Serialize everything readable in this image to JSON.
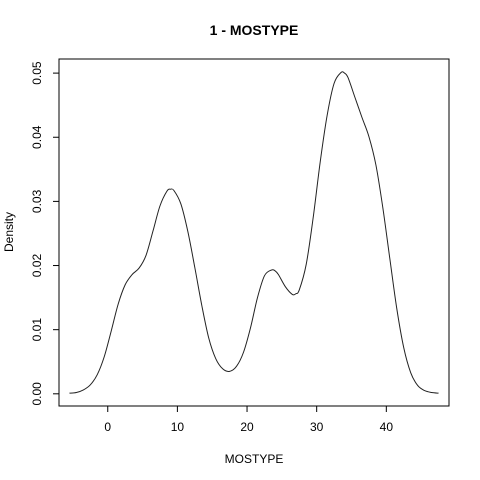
{
  "chart_data": {
    "type": "line",
    "title": "1 - MOSTYPE",
    "xlabel": "MOSTYPE",
    "ylabel": "Density",
    "x_ticks": [
      0,
      10,
      20,
      30,
      40
    ],
    "y_ticks": [
      0.0,
      0.01,
      0.02,
      0.03,
      0.04,
      0.05
    ],
    "y_tick_labels": [
      "0.00",
      "0.01",
      "0.02",
      "0.03",
      "0.04",
      "0.05"
    ],
    "xlim": [
      -7,
      49
    ],
    "ylim": [
      -0.0019,
      0.0522
    ],
    "grid": false,
    "series": [
      {
        "x": [
          -5.5,
          -4.5,
          -3.5,
          -2.5,
          -1.5,
          -0.5,
          0.5,
          1.5,
          2.5,
          3.5,
          4.5,
          5.5,
          6.5,
          7.5,
          8.5,
          9.0,
          9.5,
          10.5,
          11.5,
          12.5,
          13.5,
          14.5,
          15.5,
          16.5,
          17.5,
          18.5,
          19.5,
          20.5,
          21.5,
          22.5,
          23.5,
          24.0,
          24.5,
          25.5,
          26.5,
          27.0,
          27.5,
          28.5,
          29.5,
          30.5,
          31.5,
          32.5,
          33.5,
          34.0,
          34.5,
          35.5,
          36.5,
          37.5,
          38.5,
          39.5,
          40.5,
          41.5,
          42.5,
          43.5,
          44.5,
          45.5,
          46.5,
          47.5
        ],
        "y": [
          0.0001,
          0.0002,
          0.0006,
          0.0014,
          0.003,
          0.0058,
          0.0098,
          0.014,
          0.017,
          0.0186,
          0.0196,
          0.0216,
          0.0254,
          0.0293,
          0.0316,
          0.0319,
          0.0317,
          0.0296,
          0.0253,
          0.0197,
          0.0138,
          0.0087,
          0.0055,
          0.0039,
          0.0035,
          0.0043,
          0.0065,
          0.0103,
          0.015,
          0.0184,
          0.0193,
          0.0192,
          0.0186,
          0.0167,
          0.0155,
          0.0156,
          0.0162,
          0.0202,
          0.0275,
          0.0361,
          0.0434,
          0.0484,
          0.0501,
          0.05,
          0.0493,
          0.0462,
          0.0431,
          0.0401,
          0.0357,
          0.029,
          0.0211,
          0.0133,
          0.0072,
          0.0033,
          0.0013,
          0.0005,
          0.0002,
          0.0001
        ],
        "color": "#222222"
      }
    ]
  }
}
